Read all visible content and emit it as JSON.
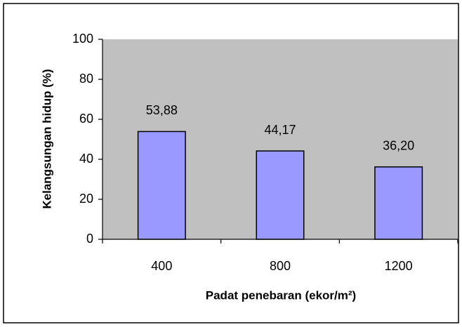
{
  "chart_data": {
    "type": "bar",
    "xlabel": "Padat penebaran (ekor/m²)",
    "ylabel": "Kelangsungan hidup (%)",
    "categories": [
      "400",
      "800",
      "1200"
    ],
    "values": [
      53.88,
      44.17,
      36.2
    ],
    "value_labels": [
      "53,88",
      "44,17",
      "36,20"
    ],
    "color": "#9999ff",
    "plot_background": "#c0c0c0",
    "ylim": [
      0,
      100
    ],
    "yticks": [
      0,
      20,
      40,
      60,
      80,
      100
    ],
    "grid": false
  }
}
